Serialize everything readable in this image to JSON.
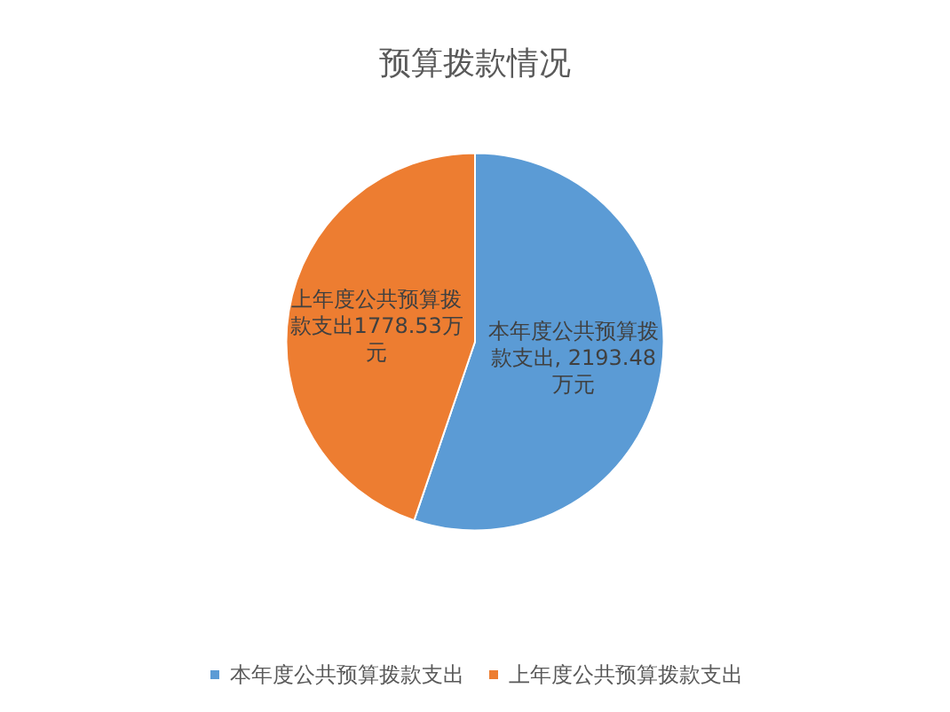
{
  "chart_data": {
    "type": "pie",
    "title": "预算拨款情况",
    "categories": [
      "本年度公共预算拨款支出",
      "上年度公共预算拨款支出"
    ],
    "values": [
      2193.48,
      1778.53
    ],
    "colors": [
      "#5b9bd5",
      "#ed7d31"
    ],
    "value_labels": [
      "本年度公共预算拨款支出, 2193.48万元",
      "上年度公共预算拨款支出1778.53万元"
    ],
    "legend": "bottom"
  }
}
